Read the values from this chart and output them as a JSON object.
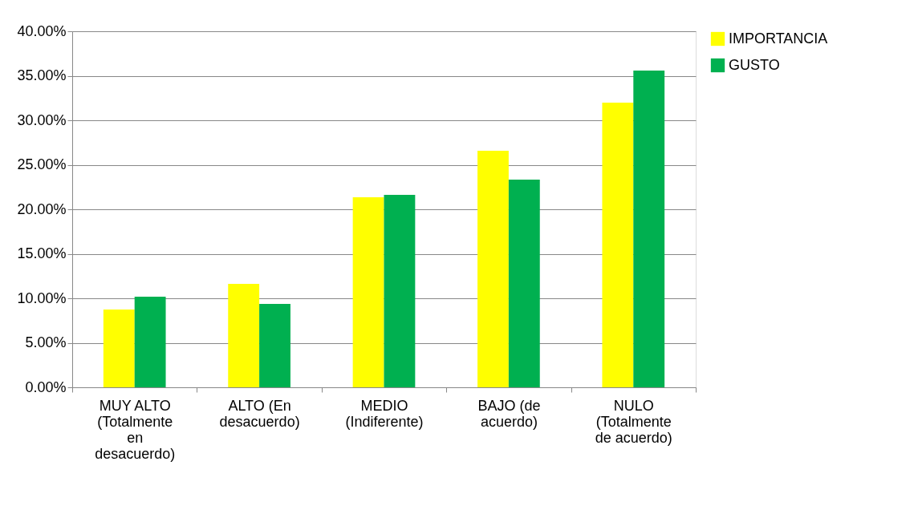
{
  "chart_data": {
    "type": "bar",
    "categories": [
      "MUY ALTO (Totalmente en desacuerdo)",
      "ALTO (En desacuerdo)",
      "MEDIO (Indiferente)",
      "BAJO (de acuerdo)",
      "NULO (Totalmente de acuerdo)"
    ],
    "series": [
      {
        "name": "IMPORTANCIA",
        "color": "#ffff00",
        "values": [
          8.74,
          11.62,
          21.35,
          26.58,
          31.98
        ]
      },
      {
        "name": "GUSTO",
        "color": "#00b050",
        "values": [
          10.18,
          9.37,
          21.62,
          23.33,
          35.59
        ]
      }
    ],
    "ylim": [
      0,
      40
    ],
    "yticks": [
      {
        "value": 0,
        "label": "0.00%"
      },
      {
        "value": 5,
        "label": "5.00%"
      },
      {
        "value": 10,
        "label": "10.00%"
      },
      {
        "value": 15,
        "label": "15.00%"
      },
      {
        "value": 20,
        "label": "20.00%"
      },
      {
        "value": 25,
        "label": "25.00%"
      },
      {
        "value": 30,
        "label": "30.00%"
      },
      {
        "value": 35,
        "label": "35.00%"
      },
      {
        "value": 40,
        "label": "40.00%"
      }
    ],
    "grid": "y",
    "legend": "right"
  }
}
